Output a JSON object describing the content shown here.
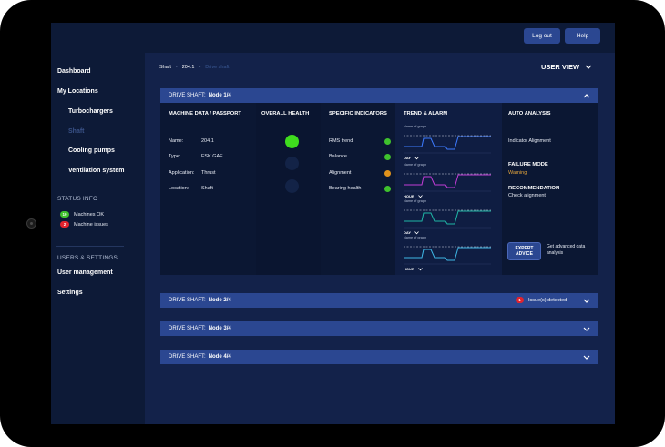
{
  "topbar": {
    "logout_label": "Log out",
    "help_label": "Help"
  },
  "sidebar": {
    "dashboard": "Dashboard",
    "my_locations": "My Locations",
    "locations": [
      "Turbochargers",
      "Shaft",
      "Cooling pumps",
      "Ventilation system"
    ],
    "status_header": "STATUS INFO",
    "status": [
      {
        "count": "10",
        "label": "Machines OK",
        "color": "#3fc12d"
      },
      {
        "count": "2",
        "label": "Machine issues",
        "color": "#e1232e"
      }
    ],
    "users_header": "USERS & SETTINGS",
    "user_management": "User management",
    "settings": "Settings"
  },
  "breadcrumb": {
    "part1": "Shaft",
    "sep": "-",
    "part2": "204.1",
    "current": "Drive shaft"
  },
  "user_view_label": "USER VIEW",
  "panels": [
    {
      "prefix": "DRIVE SHAFT:",
      "node": "Node 1/4",
      "expanded": true
    },
    {
      "prefix": "DRIVE SHAFT:",
      "node": "Node 2/4",
      "issue_count": "1",
      "issue_text": "Issue(s) detected"
    },
    {
      "prefix": "DRIVE SHAFT:",
      "node": "Node 3/4"
    },
    {
      "prefix": "DRIVE SHAFT:",
      "node": "Node 4/4"
    }
  ],
  "passport": {
    "title": "MACHINE DATA / PASSPORT",
    "rows": [
      {
        "label": "Name:",
        "value": "204.1"
      },
      {
        "label": "Type:",
        "value": "FSK GAF"
      },
      {
        "label": "Application:",
        "value": "Thrust"
      },
      {
        "label": "Location:",
        "value": "Shaft"
      }
    ]
  },
  "health": {
    "title": "OVERALL HEALTH",
    "active_color": "#3fdc1e",
    "inactive_color": "#132347"
  },
  "indicators": {
    "title": "SPECIFIC INDICATORS",
    "rows": [
      {
        "label": "RMS trend",
        "color": "#3fc12d"
      },
      {
        "label": "Balance",
        "color": "#3fc12d"
      },
      {
        "label": "Alignment",
        "color": "#e0921c"
      },
      {
        "label": "Bearing health",
        "color": "#3fc12d"
      }
    ]
  },
  "trend": {
    "title": "TREND & ALARM",
    "graphs": [
      {
        "name": "Name of graph",
        "period": "DAY",
        "color": "#3d7bff"
      },
      {
        "name": "Name of graph",
        "period": "HOUR",
        "color": "#c23dd6"
      },
      {
        "name": "Name of graph",
        "period": "DAY",
        "color": "#1fb7a6"
      },
      {
        "name": "Name of graph",
        "period": "HOUR",
        "color": "#3fb7e6"
      }
    ]
  },
  "auto_analysis": {
    "title": "AUTO ANALYSIS",
    "indicator_text": "Indicator Alignment",
    "failure_title": "FAILURE MODE",
    "failure_value": "Warning",
    "recommendation_title": "RECOMMENDATION",
    "recommendation_value": "Check alignment",
    "expert_line1": "EXPERT",
    "expert_line2": "ADVICE",
    "expert_note": "Get advanced data analysis"
  }
}
